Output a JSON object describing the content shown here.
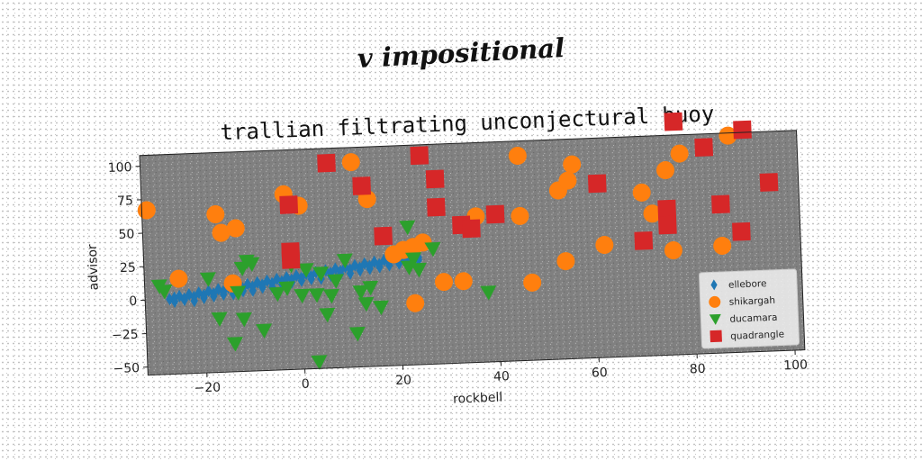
{
  "supertitle": "v impositional",
  "chart_data": {
    "type": "scatter",
    "title": "trallian filtrating unconjectural buoy",
    "xlabel": "rockbell",
    "ylabel": "advisor",
    "xlim": [
      -32,
      102
    ],
    "ylim": [
      -56,
      108
    ],
    "xticks": [
      -20,
      0,
      20,
      40,
      60,
      80,
      100
    ],
    "yticks": [
      -50,
      -25,
      0,
      25,
      50,
      75,
      100
    ],
    "tick_labels_x": [
      "−20",
      "0",
      "20",
      "40",
      "60",
      "80",
      "100"
    ],
    "tick_labels_y": [
      "−50",
      "−25",
      "0",
      "25",
      "50",
      "75",
      "100"
    ],
    "grid": false,
    "background": "#808080",
    "legend": {
      "position": "lower-right"
    },
    "series": [
      {
        "name": "ellebore",
        "marker": "diamond",
        "color": "#1f77b4",
        "points": [
          [
            -27,
            0
          ],
          [
            -26,
            1
          ],
          [
            -25,
            2
          ],
          [
            -24,
            0
          ],
          [
            -23,
            3
          ],
          [
            -22,
            1
          ],
          [
            -21,
            4
          ],
          [
            -20,
            2
          ],
          [
            -19,
            5
          ],
          [
            -18,
            3
          ],
          [
            -17,
            6
          ],
          [
            -16,
            4
          ],
          [
            -15,
            7
          ],
          [
            -14,
            5
          ],
          [
            -13,
            8
          ],
          [
            -12,
            6
          ],
          [
            -11,
            9
          ],
          [
            -10,
            7
          ],
          [
            -9,
            10
          ],
          [
            -8,
            8
          ],
          [
            -7,
            11
          ],
          [
            -6,
            9
          ],
          [
            -5,
            12
          ],
          [
            -4,
            10
          ],
          [
            -3,
            13
          ],
          [
            -2,
            11
          ],
          [
            -1,
            14
          ],
          [
            0,
            12
          ],
          [
            1,
            15
          ],
          [
            2,
            13
          ],
          [
            3,
            16
          ],
          [
            4,
            14
          ],
          [
            5,
            17
          ],
          [
            6,
            15
          ],
          [
            7,
            18
          ],
          [
            8,
            16
          ],
          [
            9,
            19
          ],
          [
            10,
            17
          ],
          [
            11,
            20
          ],
          [
            12,
            18
          ],
          [
            13,
            21
          ],
          [
            14,
            19
          ],
          [
            15,
            22
          ],
          [
            16,
            20
          ],
          [
            17,
            23
          ],
          [
            18,
            21
          ],
          [
            19,
            24
          ],
          [
            20,
            22
          ],
          [
            21,
            25
          ],
          [
            22,
            23
          ],
          [
            23,
            26
          ],
          [
            24,
            24
          ],
          [
            -26,
            -2
          ],
          [
            -24,
            -1
          ],
          [
            -22,
            -2
          ],
          [
            -20,
            0
          ],
          [
            -18,
            1
          ],
          [
            -16,
            2
          ],
          [
            -14,
            2
          ],
          [
            -12,
            4
          ],
          [
            -10,
            4
          ],
          [
            -8,
            6
          ],
          [
            -6,
            6
          ],
          [
            -4,
            8
          ],
          [
            -2,
            9
          ],
          [
            0,
            10
          ],
          [
            2,
            11
          ],
          [
            4,
            11
          ],
          [
            6,
            13
          ],
          [
            8,
            14
          ],
          [
            10,
            14
          ],
          [
            12,
            16
          ],
          [
            14,
            17
          ],
          [
            16,
            18
          ],
          [
            18,
            19
          ],
          [
            20,
            20
          ],
          [
            22,
            21
          ],
          [
            24,
            22
          ]
        ]
      },
      {
        "name": "shikargah",
        "marker": "circle",
        "color": "#ff7f0e",
        "points": [
          [
            -31,
            67
          ],
          [
            -25,
            15
          ],
          [
            -17,
            62
          ],
          [
            -16,
            48
          ],
          [
            -13,
            51
          ],
          [
            -14,
            10
          ],
          [
            -3,
            75
          ],
          [
            0,
            66
          ],
          [
            11,
            97
          ],
          [
            13,
            78
          ],
          [
            14,
            69
          ],
          [
            19,
            27
          ],
          [
            21,
            30
          ],
          [
            23,
            32
          ],
          [
            25,
            35
          ],
          [
            23,
            -10
          ],
          [
            29,
            5
          ],
          [
            33,
            5
          ],
          [
            36,
            53
          ],
          [
            45,
            97
          ],
          [
            45,
            52
          ],
          [
            47,
            2
          ],
          [
            53,
            70
          ],
          [
            55,
            77
          ],
          [
            56,
            89
          ],
          [
            54,
            17
          ],
          [
            62,
            28
          ],
          [
            70,
            66
          ],
          [
            72,
            50
          ],
          [
            75,
            82
          ],
          [
            78,
            94
          ],
          [
            76,
            22
          ],
          [
            86,
            24
          ],
          [
            88,
            106
          ]
        ]
      },
      {
        "name": "ducamara",
        "marker": "triangle",
        "color": "#2ca02c",
        "points": [
          [
            -29,
            10
          ],
          [
            -28,
            6
          ],
          [
            -19,
            14
          ],
          [
            -17,
            -16
          ],
          [
            -14,
            -35
          ],
          [
            -12,
            -17
          ],
          [
            -13,
            3
          ],
          [
            -12,
            21
          ],
          [
            -11,
            26
          ],
          [
            -10,
            24
          ],
          [
            -8,
            -26
          ],
          [
            -5,
            1
          ],
          [
            -2,
            22
          ],
          [
            0,
            -1
          ],
          [
            1,
            18
          ],
          [
            -3,
            5
          ],
          [
            3,
            -1
          ],
          [
            4,
            15
          ],
          [
            5,
            -16
          ],
          [
            6,
            -2
          ],
          [
            3,
            -51
          ],
          [
            7,
            9
          ],
          [
            9,
            24
          ],
          [
            11,
            -31
          ],
          [
            12,
            0
          ],
          [
            13,
            -9
          ],
          [
            14,
            3
          ],
          [
            16,
            -12
          ],
          [
            23,
            23
          ],
          [
            22,
            47
          ],
          [
            22,
            17
          ],
          [
            24,
            15
          ],
          [
            27,
            30
          ],
          [
            38,
            -4
          ]
        ]
      },
      {
        "name": "quadrangle",
        "marker": "square",
        "color": "#d62728",
        "points": [
          [
            -2,
            67
          ],
          [
            -2,
            26
          ],
          [
            -2,
            32
          ],
          [
            6,
            97
          ],
          [
            13,
            79
          ],
          [
            17,
            41
          ],
          [
            25,
            100
          ],
          [
            28,
            82
          ],
          [
            28,
            61
          ],
          [
            33,
            47
          ],
          [
            35,
            44
          ],
          [
            40,
            54
          ],
          [
            61,
            74
          ],
          [
            70,
            30
          ],
          [
            75,
            53
          ],
          [
            75,
            41
          ],
          [
            77,
            118
          ],
          [
            83,
            98
          ],
          [
            86,
            55
          ],
          [
            90,
            34
          ],
          [
            91,
            110
          ],
          [
            96,
            70
          ]
        ]
      }
    ]
  }
}
